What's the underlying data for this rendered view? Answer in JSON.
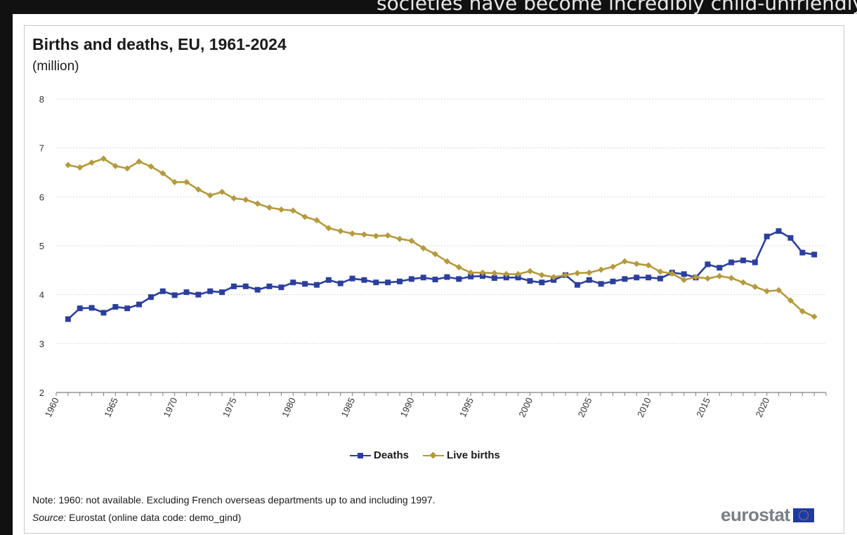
{
  "background_caption": "societies have become incredibly child-unfriendly",
  "title": "Births and deaths, EU, 1961-2024",
  "subtitle": "(million)",
  "note": "Note: 1960: not available. Excluding French overseas departments up to and including 1997.",
  "source_label": "Source:",
  "source_text": " Eurostat (online data code: demo_gind)",
  "logo_text": "eurostat",
  "colors": {
    "deaths": "#2b3f9e",
    "births": "#b59a3c",
    "grid": "#d9d9d9",
    "axis": "#808080"
  },
  "chart_data": {
    "type": "line",
    "title": "Births and deaths, EU, 1961-2024",
    "ylabel": "(million)",
    "xlabel": "",
    "ylim": [
      2,
      8
    ],
    "yticks": [
      "2",
      "3",
      "4",
      "5",
      "6",
      "7",
      "8"
    ],
    "xlim": [
      1960,
      2025
    ],
    "xticks": [
      "1960",
      "1965",
      "1970",
      "1975",
      "1980",
      "1985",
      "1990",
      "1995",
      "2000",
      "2005",
      "2010",
      "2015",
      "2020"
    ],
    "grid": true,
    "legend_position": "bottom-center",
    "x": [
      1961,
      1962,
      1963,
      1964,
      1965,
      1966,
      1967,
      1968,
      1969,
      1970,
      1971,
      1972,
      1973,
      1974,
      1975,
      1976,
      1977,
      1978,
      1979,
      1980,
      1981,
      1982,
      1983,
      1984,
      1985,
      1986,
      1987,
      1988,
      1989,
      1990,
      1991,
      1992,
      1993,
      1994,
      1995,
      1996,
      1997,
      1998,
      1999,
      2000,
      2001,
      2002,
      2003,
      2004,
      2005,
      2006,
      2007,
      2008,
      2009,
      2010,
      2011,
      2012,
      2013,
      2014,
      2015,
      2016,
      2017,
      2018,
      2019,
      2020,
      2021,
      2022,
      2023,
      2024
    ],
    "series": [
      {
        "name": "Deaths",
        "marker": "square",
        "values": [
          3.5,
          3.72,
          3.73,
          3.63,
          3.75,
          3.72,
          3.8,
          3.95,
          4.07,
          3.99,
          4.05,
          4.0,
          4.07,
          4.05,
          4.17,
          4.17,
          4.1,
          4.17,
          4.15,
          4.25,
          4.22,
          4.2,
          4.3,
          4.23,
          4.33,
          4.3,
          4.25,
          4.25,
          4.27,
          4.32,
          4.35,
          4.31,
          4.36,
          4.32,
          4.37,
          4.38,
          4.34,
          4.35,
          4.35,
          4.28,
          4.25,
          4.3,
          4.4,
          4.2,
          4.3,
          4.22,
          4.27,
          4.32,
          4.35,
          4.35,
          4.33,
          4.45,
          4.42,
          4.35,
          4.62,
          4.55,
          4.66,
          4.7,
          4.66,
          5.19,
          5.3,
          5.16,
          4.86,
          4.82
        ]
      },
      {
        "name": "Live births",
        "marker": "diamond",
        "values": [
          6.65,
          6.6,
          6.7,
          6.78,
          6.63,
          6.58,
          6.72,
          6.62,
          6.48,
          6.3,
          6.3,
          6.15,
          6.03,
          6.1,
          5.97,
          5.94,
          5.86,
          5.78,
          5.74,
          5.72,
          5.59,
          5.52,
          5.36,
          5.3,
          5.25,
          5.23,
          5.2,
          5.21,
          5.14,
          5.1,
          4.95,
          4.83,
          4.68,
          4.56,
          4.45,
          4.45,
          4.44,
          4.42,
          4.42,
          4.48,
          4.4,
          4.36,
          4.4,
          4.44,
          4.45,
          4.51,
          4.57,
          4.68,
          4.63,
          4.6,
          4.47,
          4.43,
          4.3,
          4.36,
          4.33,
          4.38,
          4.34,
          4.25,
          4.16,
          4.07,
          4.09,
          3.88,
          3.66,
          3.55
        ]
      }
    ]
  }
}
